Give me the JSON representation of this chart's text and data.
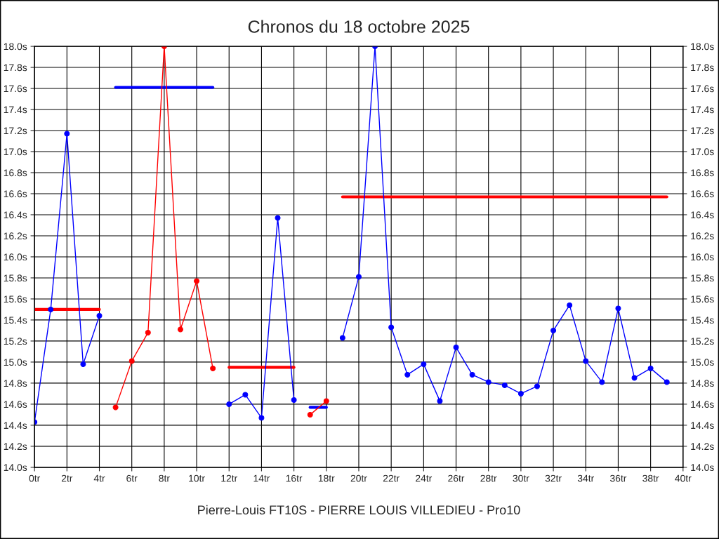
{
  "chart_data": {
    "type": "line",
    "title": "Chronos du 18 octobre 2025",
    "xlabel": "Pierre-Louis FT10S - PIERRE LOUIS VILLEDIEU - Pro10",
    "xlim": [
      0,
      40
    ],
    "ylim": [
      14.0,
      18.0
    ],
    "y2lim": [
      14.0,
      18.0
    ],
    "grid": true,
    "marker": "circle",
    "line_style": "solid",
    "xticks": [
      {
        "value": 0,
        "label": "0tr"
      },
      {
        "value": 2,
        "label": "2tr"
      },
      {
        "value": 4,
        "label": "4tr"
      },
      {
        "value": 6,
        "label": "6tr"
      },
      {
        "value": 8,
        "label": "8tr"
      },
      {
        "value": 10,
        "label": "10tr"
      },
      {
        "value": 12,
        "label": "12tr"
      },
      {
        "value": 14,
        "label": "14tr"
      },
      {
        "value": 16,
        "label": "16tr"
      },
      {
        "value": 18,
        "label": "18tr"
      },
      {
        "value": 20,
        "label": "20tr"
      },
      {
        "value": 22,
        "label": "22tr"
      },
      {
        "value": 24,
        "label": "24tr"
      },
      {
        "value": 26,
        "label": "26tr"
      },
      {
        "value": 28,
        "label": "28tr"
      },
      {
        "value": 30,
        "label": "30tr"
      },
      {
        "value": 32,
        "label": "32tr"
      },
      {
        "value": 34,
        "label": "34tr"
      },
      {
        "value": 36,
        "label": "36tr"
      },
      {
        "value": 38,
        "label": "38tr"
      },
      {
        "value": 40,
        "label": "40tr"
      }
    ],
    "yticks": [
      {
        "value": 14.0,
        "label": "14.0s"
      },
      {
        "value": 14.2,
        "label": "14.2s"
      },
      {
        "value": 14.4,
        "label": "14.4s"
      },
      {
        "value": 14.6,
        "label": "14.6s"
      },
      {
        "value": 14.8,
        "label": "14.8s"
      },
      {
        "value": 15.0,
        "label": "15.0s"
      },
      {
        "value": 15.2,
        "label": "15.2s"
      },
      {
        "value": 15.4,
        "label": "15.4s"
      },
      {
        "value": 15.6,
        "label": "15.6s"
      },
      {
        "value": 15.8,
        "label": "15.8s"
      },
      {
        "value": 16.0,
        "label": "16.0s"
      },
      {
        "value": 16.2,
        "label": "16.2s"
      },
      {
        "value": 16.4,
        "label": "16.4s"
      },
      {
        "value": 16.6,
        "label": "16.6s"
      },
      {
        "value": 16.8,
        "label": "16.8s"
      },
      {
        "value": 17.0,
        "label": "17.0s"
      },
      {
        "value": 17.2,
        "label": "17.2s"
      },
      {
        "value": 17.4,
        "label": "17.4s"
      },
      {
        "value": 17.6,
        "label": "17.6s"
      },
      {
        "value": 17.8,
        "label": "17.8s"
      },
      {
        "value": 18.0,
        "label": "18.0s"
      }
    ],
    "y2ticks": [
      {
        "value": 14.0,
        "label": "14.0s"
      },
      {
        "value": 14.2,
        "label": "14.2s"
      },
      {
        "value": 14.4,
        "label": "14.4s"
      },
      {
        "value": 14.6,
        "label": "14.6s"
      },
      {
        "value": 14.8,
        "label": "14.8s"
      },
      {
        "value": 15.0,
        "label": "15.0s"
      },
      {
        "value": 15.2,
        "label": "15.2s"
      },
      {
        "value": 15.4,
        "label": "15.4s"
      },
      {
        "value": 15.6,
        "label": "15.6s"
      },
      {
        "value": 15.8,
        "label": "15.8s"
      },
      {
        "value": 16.0,
        "label": "16.0s"
      },
      {
        "value": 16.2,
        "label": "16.2s"
      },
      {
        "value": 16.4,
        "label": "16.4s"
      },
      {
        "value": 16.6,
        "label": "16.6s"
      },
      {
        "value": 16.8,
        "label": "16.8s"
      },
      {
        "value": 17.0,
        "label": "17.0s"
      },
      {
        "value": 17.2,
        "label": "17.2s"
      },
      {
        "value": 17.4,
        "label": "17.4s"
      },
      {
        "value": 17.6,
        "label": "17.6s"
      },
      {
        "value": 17.8,
        "label": "17.8s"
      },
      {
        "value": 18.0,
        "label": "18.0s"
      }
    ],
    "series": [
      {
        "color": "#0000ff",
        "x": [
          0,
          1,
          2,
          3,
          4
        ],
        "values": [
          14.43,
          15.5,
          17.17,
          14.98,
          15.44
        ]
      },
      {
        "color": "#ff0000",
        "x": [
          5,
          6,
          7,
          8,
          9,
          10,
          11
        ],
        "values": [
          14.57,
          15.01,
          15.28,
          18.0,
          15.31,
          15.77,
          14.94
        ]
      },
      {
        "color": "#0000ff",
        "x": [
          12,
          13,
          14,
          15,
          16
        ],
        "values": [
          14.6,
          14.69,
          14.47,
          16.37,
          14.64
        ]
      },
      {
        "color": "#ff0000",
        "x": [
          17,
          18
        ],
        "values": [
          14.5,
          14.63
        ]
      },
      {
        "color": "#0000ff",
        "x": [
          19,
          20,
          21,
          22,
          23,
          24,
          25,
          26,
          27,
          28,
          29,
          30,
          31,
          32,
          33,
          34,
          35,
          36,
          37,
          38,
          39
        ],
        "values": [
          15.23,
          15.81,
          18.0,
          15.33,
          14.88,
          14.98,
          14.63,
          15.14,
          14.88,
          14.81,
          14.78,
          14.7,
          14.77,
          15.3,
          15.54,
          15.01,
          14.81,
          15.51,
          14.85,
          14.94,
          14.81
        ]
      },
      {
        "color": "#ff0000",
        "marker": "none",
        "x": [
          0,
          4
        ],
        "values": [
          15.5,
          15.5
        ]
      },
      {
        "color": "#0000ff",
        "marker": "none",
        "x": [
          5,
          11
        ],
        "values": [
          17.61,
          17.61
        ]
      },
      {
        "color": "#ff0000",
        "marker": "none",
        "x": [
          12,
          16
        ],
        "values": [
          14.95,
          14.95
        ]
      },
      {
        "color": "#0000ff",
        "marker": "none",
        "x": [
          17,
          18
        ],
        "values": [
          14.57,
          14.57
        ]
      },
      {
        "color": "#ff0000",
        "marker": "none",
        "x": [
          19,
          39
        ],
        "values": [
          16.57,
          16.57
        ]
      }
    ]
  }
}
